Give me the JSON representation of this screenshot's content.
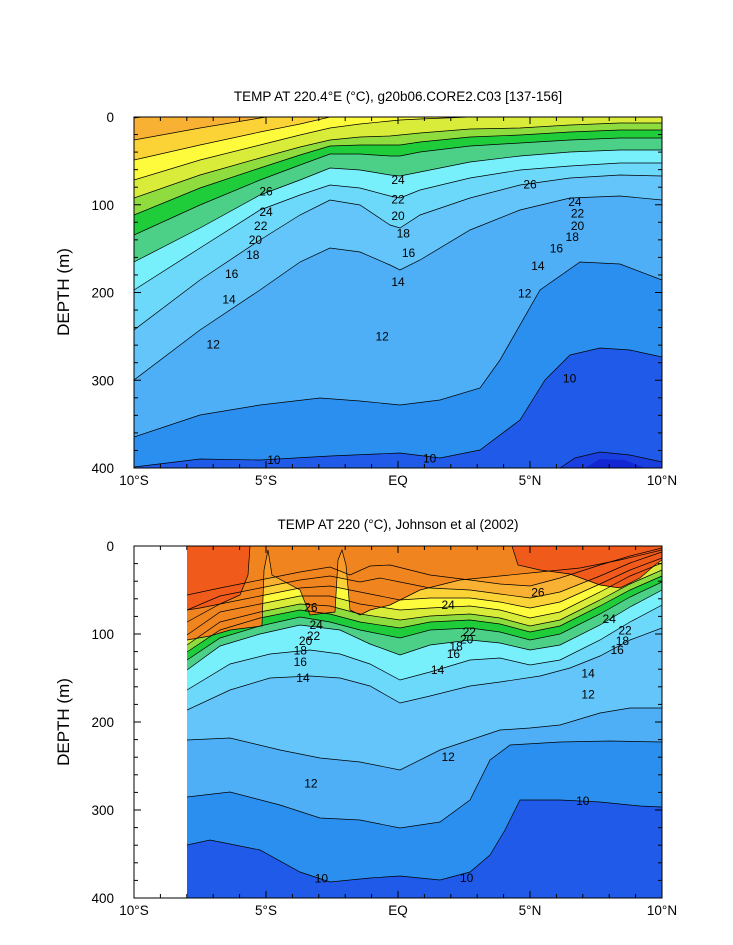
{
  "chart_data": [
    {
      "type": "contour",
      "title": "TEMP AT 220.4°E (°C), g20b06.CORE2.C03 [137-156]",
      "ylabel": "DEPTH (m)",
      "x_ticks": [
        "10°S",
        "5°S",
        "EQ",
        "5°N",
        "10°N"
      ],
      "x_tick_values": [
        -10,
        -5,
        0,
        5,
        10
      ],
      "y_ticks": [
        "0",
        "100",
        "200",
        "300",
        "400"
      ],
      "y_tick_values": [
        0,
        100,
        200,
        300,
        400
      ],
      "xlim": [
        -10,
        10
      ],
      "ylim": [
        0,
        400
      ],
      "y_reversed": true,
      "data_extent_x": [
        -10,
        10
      ],
      "contour_interval": 1,
      "contour_labels": [
        {
          "x": -5,
          "y": 85,
          "text": "26"
        },
        {
          "x": 5,
          "y": 77,
          "text": "26"
        },
        {
          "x": -5,
          "y": 108,
          "text": "24"
        },
        {
          "x": 0,
          "y": 72,
          "text": "24"
        },
        {
          "x": 6.7,
          "y": 97,
          "text": "24"
        },
        {
          "x": -5.2,
          "y": 124,
          "text": "22"
        },
        {
          "x": 0,
          "y": 94,
          "text": "22"
        },
        {
          "x": 6.8,
          "y": 110,
          "text": "22"
        },
        {
          "x": -5.4,
          "y": 140,
          "text": "20"
        },
        {
          "x": 0,
          "y": 113,
          "text": "20"
        },
        {
          "x": 6.8,
          "y": 124,
          "text": "20"
        },
        {
          "x": -5.5,
          "y": 157,
          "text": "18"
        },
        {
          "x": 0.2,
          "y": 133,
          "text": "18"
        },
        {
          "x": 6.6,
          "y": 137,
          "text": "18"
        },
        {
          "x": -6.3,
          "y": 179,
          "text": "16"
        },
        {
          "x": 0.4,
          "y": 155,
          "text": "16"
        },
        {
          "x": 6,
          "y": 150,
          "text": "16"
        },
        {
          "x": -6.4,
          "y": 208,
          "text": "14"
        },
        {
          "x": 0,
          "y": 188,
          "text": "14"
        },
        {
          "x": 5.3,
          "y": 170,
          "text": "14"
        },
        {
          "x": -7,
          "y": 259,
          "text": "12"
        },
        {
          "x": -0.6,
          "y": 250,
          "text": "12"
        },
        {
          "x": 4.8,
          "y": 201,
          "text": "12"
        },
        {
          "x": -4.7,
          "y": 391,
          "text": "10"
        },
        {
          "x": 1.2,
          "y": 389,
          "text": "10"
        },
        {
          "x": 6.5,
          "y": 298,
          "text": "10"
        }
      ]
    },
    {
      "type": "contour",
      "title": "TEMP AT 220 (°C), Johnson et al (2002)",
      "ylabel": "DEPTH (m)",
      "x_ticks": [
        "10°S",
        "5°S",
        "EQ",
        "5°N",
        "10°N"
      ],
      "x_tick_values": [
        -10,
        -5,
        0,
        5,
        10
      ],
      "y_ticks": [
        "0",
        "100",
        "200",
        "300",
        "400"
      ],
      "y_tick_values": [
        0,
        100,
        200,
        300,
        400
      ],
      "xlim": [
        -10,
        10
      ],
      "ylim": [
        0,
        400
      ],
      "y_reversed": true,
      "data_extent_x": [
        -8,
        10
      ],
      "contour_interval": 1,
      "contour_labels": [
        {
          "x": -3.3,
          "y": 70,
          "text": "26"
        },
        {
          "x": 5.3,
          "y": 53,
          "text": "26"
        },
        {
          "x": -3.1,
          "y": 90,
          "text": "24"
        },
        {
          "x": 1.9,
          "y": 67,
          "text": "24"
        },
        {
          "x": 8,
          "y": 83,
          "text": "24"
        },
        {
          "x": -3.2,
          "y": 102,
          "text": "22"
        },
        {
          "x": 2.7,
          "y": 98,
          "text": "22"
        },
        {
          "x": 8.6,
          "y": 96,
          "text": "22"
        },
        {
          "x": -3.5,
          "y": 108,
          "text": "20"
        },
        {
          "x": 2.6,
          "y": 106,
          "text": "20"
        },
        {
          "x": -3.7,
          "y": 119,
          "text": "18"
        },
        {
          "x": 2.2,
          "y": 114,
          "text": "18"
        },
        {
          "x": 8.5,
          "y": 108,
          "text": "18"
        },
        {
          "x": -3.7,
          "y": 132,
          "text": "16"
        },
        {
          "x": 2.1,
          "y": 123,
          "text": "16"
        },
        {
          "x": 8.3,
          "y": 118,
          "text": "16"
        },
        {
          "x": -3.6,
          "y": 150,
          "text": "14"
        },
        {
          "x": 1.5,
          "y": 141,
          "text": "14"
        },
        {
          "x": 7.2,
          "y": 145,
          "text": "14"
        },
        {
          "x": -3.3,
          "y": 270,
          "text": "12"
        },
        {
          "x": 1.9,
          "y": 240,
          "text": "12"
        },
        {
          "x": 7.2,
          "y": 169,
          "text": "12"
        },
        {
          "x": -2.9,
          "y": 378,
          "text": "10"
        },
        {
          "x": 2.6,
          "y": 377,
          "text": "10"
        },
        {
          "x": 7,
          "y": 290,
          "text": "10"
        }
      ]
    }
  ]
}
